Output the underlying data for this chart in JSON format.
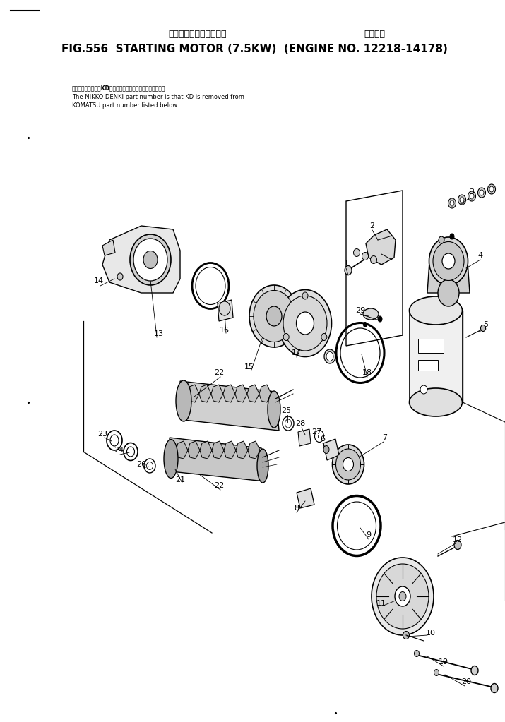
{
  "title_japanese": "スターティング　モータ　　　　適用号機",
  "title_english": "FIG.556  STARTING MOTOR (7.5KW)  (ENGINE NO. 12218-14178)",
  "note_line1": "品番のメーカー記号KDを除いたものが日荷電機の品番です。",
  "note_line2": "The NIKKO DENKI part number is that KD is removed from",
  "note_line3": "KOMATSU part number listed below.",
  "bg_color": "#ffffff",
  "line_color": "#000000"
}
